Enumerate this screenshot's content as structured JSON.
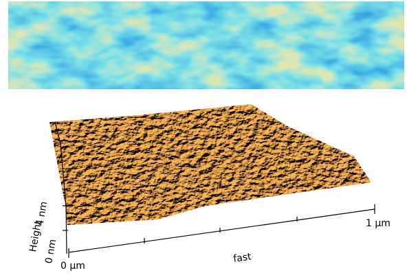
{
  "axes": {
    "height_max": "4 nm",
    "height_label": "Height",
    "height_min": "0 nm",
    "x_start": "0 µm",
    "x_end": "1 µm",
    "x_label": "fast"
  }
}
